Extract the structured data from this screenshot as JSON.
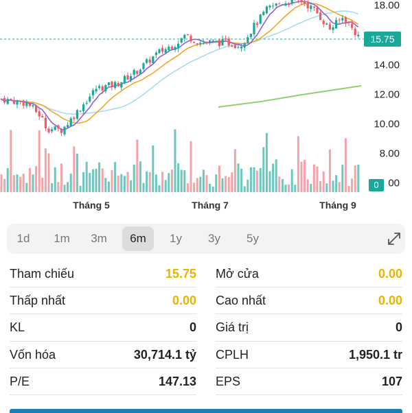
{
  "chart": {
    "price_axis": [
      "18.00",
      "14.00",
      "12.00",
      "10.00",
      "8.00"
    ],
    "price_axis_partial": "00",
    "last_price_badge": "15.75",
    "volume_badge": "0",
    "months": [
      "Tháng 5",
      "Tháng 7",
      "Tháng 9"
    ],
    "colors": {
      "up": "#1aa89a",
      "down": "#f05a63",
      "ma_short": "#8e5fd6",
      "ma_mid": "#f5a623",
      "ma_long": "#a9dbf5",
      "ma_200": "#8fd16b"
    }
  },
  "ranges": {
    "items": [
      "1d",
      "1m",
      "3m",
      "6m",
      "1y",
      "3y",
      "5y"
    ],
    "selected": "6m",
    "expand_icon": "expand-icon"
  },
  "stats": {
    "rows": [
      {
        "left_label": "Tham chiếu",
        "left_value": "15.75",
        "right_label": "Mở cửa",
        "right_value": "0.00"
      },
      {
        "left_label": "Thấp nhất",
        "left_value": "0.00",
        "right_label": "Cao nhất",
        "right_value": "0.00"
      },
      {
        "left_label": "KL",
        "left_value": "0",
        "right_label": "Giá trị",
        "right_value": "0"
      },
      {
        "left_label": "Vốn hóa",
        "left_value": "30,714.1 tỷ",
        "right_label": "CPLH",
        "right_value": "1,950.1 tr"
      },
      {
        "left_label": "P/E",
        "left_value": "147.13",
        "right_label": "EPS",
        "right_value": "107"
      }
    ]
  }
}
